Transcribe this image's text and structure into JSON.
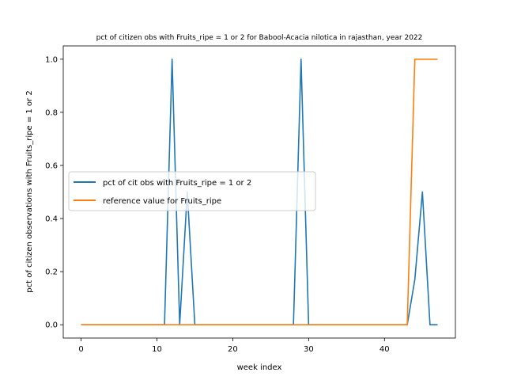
{
  "chart_data": {
    "type": "line",
    "title": "pct of citizen obs with Fruits_ripe = 1 or 2 for Babool-Acacia nilotica in rajasthan, year 2022",
    "xlabel": "week index",
    "ylabel": "pct of citizen observations with Fruits_ripe = 1 or 2",
    "xlim": [
      -2.35,
      49.35
    ],
    "ylim": [
      -0.05,
      1.05
    ],
    "xticks": [
      0,
      10,
      20,
      30,
      40
    ],
    "yticks": [
      0.0,
      0.2,
      0.4,
      0.6,
      0.8,
      1.0
    ],
    "xtick_labels": [
      "0",
      "10",
      "20",
      "30",
      "40"
    ],
    "ytick_labels": [
      "0.0",
      "0.2",
      "0.4",
      "0.6",
      "0.8",
      "1.0"
    ],
    "grid": false,
    "legend_position": "center-left",
    "series": [
      {
        "name": "pct of cit obs with Fruits_ripe = 1 or 2",
        "color": "#1f77b4",
        "x": [
          0,
          1,
          2,
          3,
          4,
          5,
          6,
          7,
          8,
          9,
          10,
          11,
          12,
          13,
          14,
          15,
          16,
          17,
          18,
          19,
          20,
          21,
          22,
          23,
          24,
          25,
          26,
          27,
          28,
          29,
          30,
          31,
          32,
          33,
          34,
          35,
          36,
          37,
          38,
          39,
          40,
          41,
          42,
          43,
          44,
          45,
          46,
          47
        ],
        "y": [
          0,
          0,
          0,
          0,
          0,
          0,
          0,
          0,
          0,
          0,
          0,
          0,
          1,
          0,
          0.5,
          0,
          0,
          0,
          0,
          0,
          0,
          0,
          0,
          0,
          0,
          0,
          0,
          0,
          0,
          1,
          0,
          0,
          0,
          0,
          0,
          0,
          0,
          0,
          0,
          0,
          0,
          0,
          0,
          0,
          0.17,
          0.5,
          0,
          0
        ]
      },
      {
        "name": "reference value for Fruits_ripe",
        "color": "#ff7f0e",
        "x": [
          0,
          1,
          2,
          3,
          4,
          5,
          6,
          7,
          8,
          9,
          10,
          11,
          12,
          13,
          14,
          15,
          16,
          17,
          18,
          19,
          20,
          21,
          22,
          23,
          24,
          25,
          26,
          27,
          28,
          29,
          30,
          31,
          32,
          33,
          34,
          35,
          36,
          37,
          38,
          39,
          40,
          41,
          42,
          43,
          44,
          45,
          46,
          47
        ],
        "y": [
          0,
          0,
          0,
          0,
          0,
          0,
          0,
          0,
          0,
          0,
          0,
          0,
          0,
          0,
          0,
          0,
          0,
          0,
          0,
          0,
          0,
          0,
          0,
          0,
          0,
          0,
          0,
          0,
          0,
          0,
          0,
          0,
          0,
          0,
          0,
          0,
          0,
          0,
          0,
          0,
          0,
          0,
          0,
          0,
          1,
          1,
          1,
          1
        ]
      }
    ]
  }
}
